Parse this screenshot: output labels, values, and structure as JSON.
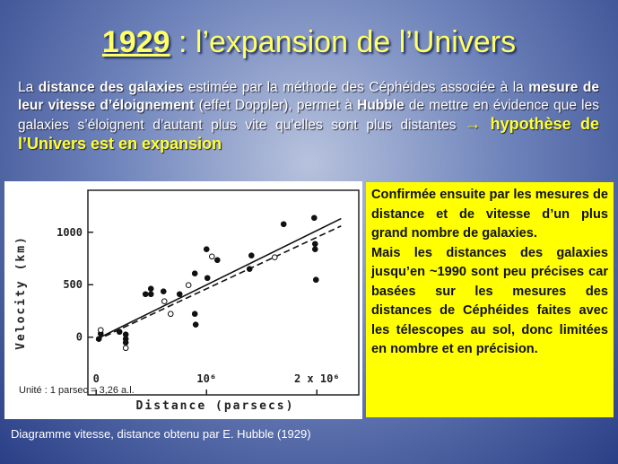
{
  "title": {
    "runs": [
      {
        "text": "1929",
        "bold": true,
        "underline": true
      },
      {
        "text": " : l’expansion de l’Univers",
        "bold": false,
        "underline": false
      }
    ]
  },
  "intro": {
    "runs": [
      {
        "text": "La ",
        "bold": false
      },
      {
        "text": "distance des galaxies",
        "bold": true
      },
      {
        "text": " estimée par la méthode des Céphéides associée à la ",
        "bold": false
      },
      {
        "text": "mesure de leur vitesse d’éloignement",
        "bold": true
      },
      {
        "text": " (effet Doppler), permet à ",
        "bold": false
      },
      {
        "text": "Hubble",
        "bold": true
      },
      {
        "text": " de mettre en évidence que les galaxies s’éloignent d’autant plus vite qu’elles sont plus distantes ",
        "bold": false
      }
    ],
    "conclusion": "→ hypothèse de l’Univers est en expansion"
  },
  "side_box": {
    "paragraphs": [
      "Confirmée ensuite par les mesures de distance et de vitesse d’un plus grand nombre de galaxies.",
      "Mais les distances des galaxies jusqu’en ~1990 sont peu précises car basées sur les mesures des distances de Céphéides faites avec les télescopes au sol, donc limitées en nombre et en précision."
    ]
  },
  "caption": "Diagramme vitesse, distance obtenu par E. Hubble (1929)",
  "chart_data": {
    "type": "scatter",
    "xlabel": "Distance (parsecs)",
    "ylabel": "Velocity (km)",
    "annotation": "Unité : 1 parsec = 3,26 a.l.",
    "xlim": [
      -75000,
      2380000
    ],
    "ylim": [
      -550,
      1400
    ],
    "xticks": [
      0,
      {
        "value": 1000000,
        "label": "10⁶"
      },
      {
        "value": 2000000,
        "label": "2 x 10⁶"
      }
    ],
    "yticks": [
      0,
      500,
      1000
    ],
    "series": [
      {
        "marker": "filled",
        "color": "#111111",
        "x": [
          24000,
          41000,
          211000,
          268000,
          268000,
          268000,
          447000,
          496000,
          496000,
          610000,
          756000,
          894000,
          894000,
          902000,
          1000000,
          1008000,
          1098000,
          1390000,
          1407000,
          1699000,
          1976000,
          1984000,
          1984000,
          1992000
        ],
        "values": [
          -17,
          34,
          51,
          26,
          -17,
          -51,
          410,
          462,
          410,
          436,
          410,
          607,
          222,
          120,
          838,
          564,
          735,
          650,
          778,
          1077,
          1137,
          889,
          838,
          547
        ]
      },
      {
        "marker": "open",
        "color": "#ffffff",
        "x": [
          41000,
          268000,
          618000,
          675000,
          837000,
          1049000,
          1618000
        ],
        "values": [
          68,
          -103,
          342,
          222,
          496,
          769,
          761
        ]
      }
    ],
    "fit_lines": [
      {
        "dashed": false,
        "x": [
          0,
          2220000
        ],
        "values": [
          -20,
          1130
        ]
      },
      {
        "dashed": true,
        "x": [
          0,
          2220000
        ],
        "values": [
          -30,
          1060
        ]
      }
    ]
  }
}
